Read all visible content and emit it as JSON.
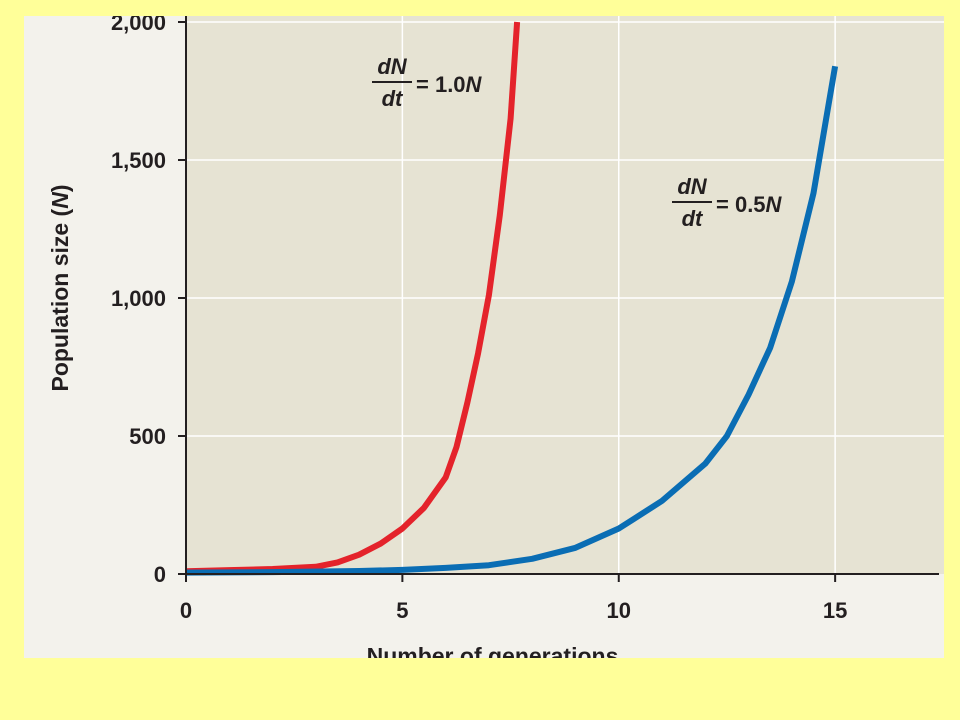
{
  "chart_data": {
    "type": "line",
    "xlabel": "Number of generations",
    "ylabel_main": "Population size (",
    "ylabel_var": "N",
    "ylabel_close": ")",
    "xlim": [
      0,
      17.4
    ],
    "ylim": [
      0,
      2000
    ],
    "x_ticks": [
      0,
      5,
      10,
      15
    ],
    "x_tick_labels": [
      "0",
      "5",
      "10",
      "15"
    ],
    "y_ticks": [
      0,
      500,
      1000,
      1500,
      2000
    ],
    "y_tick_labels": [
      "0",
      "500",
      "1,000",
      "1,500",
      "2,000"
    ],
    "grid": true,
    "series": [
      {
        "color": "#e4232b",
        "x": [
          0,
          1,
          2,
          3,
          3.5,
          4,
          4.5,
          5,
          5.5,
          6,
          6.25,
          6.5,
          6.75,
          7,
          7.25,
          7.5,
          7.65
        ],
        "y": [
          10,
          14,
          18,
          26,
          42,
          70,
          110,
          165,
          240,
          350,
          460,
          620,
          800,
          1010,
          1300,
          1650,
          2000
        ],
        "label": {
          "dn": "dN",
          "dt": "dt",
          "eq": "= 1.0",
          "var": "N"
        }
      },
      {
        "color": "#0a6db4",
        "x": [
          0,
          2,
          4,
          5,
          6,
          7,
          8,
          9,
          10,
          11,
          12,
          12.5,
          13,
          13.5,
          14,
          14.5,
          15
        ],
        "y": [
          5,
          7,
          11,
          15,
          22,
          32,
          55,
          95,
          165,
          265,
          400,
          500,
          650,
          820,
          1060,
          1380,
          1840
        ],
        "label": {
          "dn": "dN",
          "dt": "dt",
          "eq": "= 0.5",
          "var": "N"
        }
      }
    ]
  }
}
